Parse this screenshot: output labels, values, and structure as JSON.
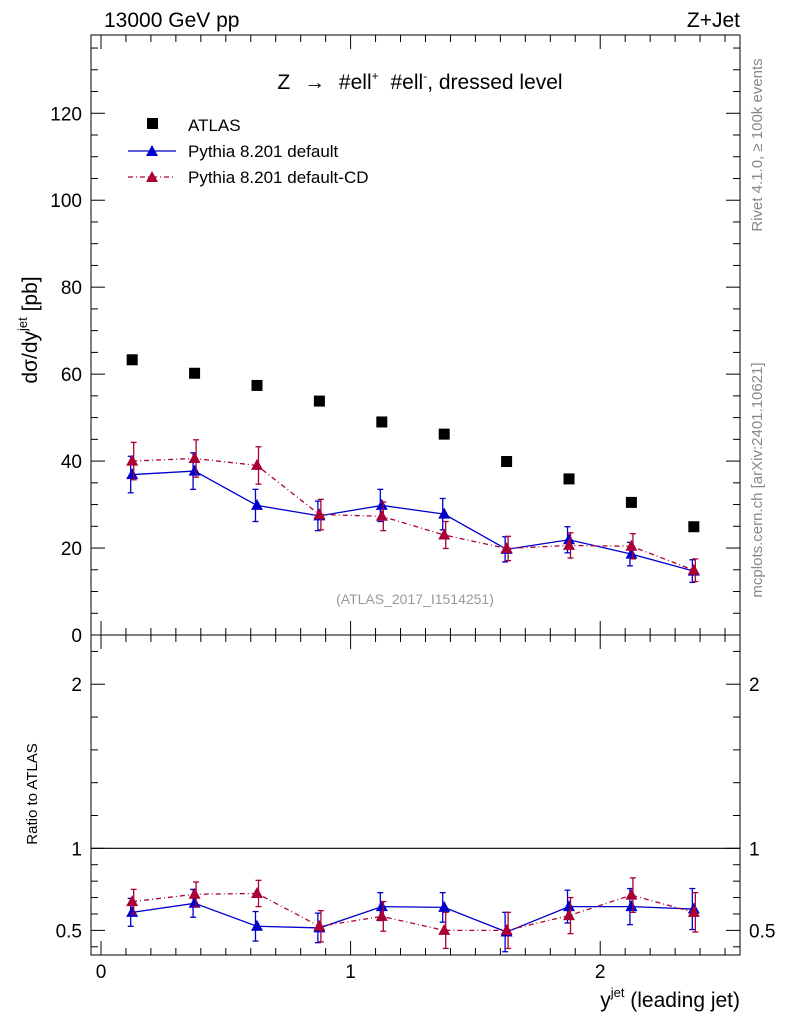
{
  "header": {
    "left": "13000 GeV pp",
    "right": "Z+Jet"
  },
  "side_labels": {
    "rivet": "Rivet 4.1.0, ≥ 100k events",
    "mcplots": "mcplots.cern.ch [arXiv:2401.10621]"
  },
  "chart_data": {
    "type": "scatter",
    "title": "Z → #ell⁺ #ell⁻, dressed level",
    "title_parts": {
      "z": "Z",
      "arrow": "→",
      "ell1": "#ell",
      "sup1": "+",
      "ell2": "#ell",
      "sup2": "-",
      "rest": ", dressed level"
    },
    "watermark": "(ATLAS_2017_I1514251)",
    "ylabel_parts": {
      "base": "dσ/dy",
      "sup": "jet",
      "unit": " [pb]"
    },
    "xlabel_parts": {
      "base": "y",
      "sup": "jet",
      "rest": " (leading jet)"
    },
    "ratio_ylabel": "Ratio to ATLAS",
    "xlim": [
      -0.04,
      2.56
    ],
    "ylim": [
      0,
      138
    ],
    "ratio_ylim": [
      0.35,
      2.3
    ],
    "x_ticks": [
      0,
      1,
      2
    ],
    "x_tick_labels": [
      "0",
      "1",
      "2"
    ],
    "y_ticks": [
      0,
      20,
      40,
      60,
      80,
      100,
      120
    ],
    "y_tick_labels": [
      "0",
      "20",
      "40",
      "60",
      "80",
      "100",
      "120"
    ],
    "ratio_ticks": [
      0.5,
      1,
      2
    ],
    "ratio_tick_labels": [
      "0.5",
      "1",
      "2"
    ],
    "x": [
      0.125,
      0.375,
      0.625,
      0.875,
      1.125,
      1.375,
      1.625,
      1.875,
      2.125,
      2.375
    ],
    "legend": [
      "ATLAS",
      "Pythia 8.201 default",
      "Pythia 8.201 default-CD"
    ],
    "series": [
      {
        "name": "ATLAS",
        "color": "#000000",
        "values": [
          63.3,
          60.2,
          57.4,
          53.8,
          49.0,
          46.2,
          39.9,
          35.9,
          30.5,
          24.9
        ]
      },
      {
        "name": "Pythia 8.201 default",
        "color": "#0000cc",
        "values": [
          36.9,
          37.7,
          29.8,
          27.4,
          29.8,
          27.8,
          19.7,
          21.9,
          18.6,
          14.7
        ],
        "errors": [
          4.2,
          4.2,
          3.7,
          3.4,
          3.7,
          3.6,
          2.9,
          3.0,
          2.7,
          2.6
        ],
        "ratio": [
          0.61,
          0.665,
          0.525,
          0.515,
          0.645,
          0.64,
          0.49,
          0.645,
          0.645,
          0.63
        ],
        "ratio_errors": [
          0.085,
          0.085,
          0.09,
          0.09,
          0.085,
          0.09,
          0.12,
          0.1,
          0.11,
          0.125
        ]
      },
      {
        "name": "Pythia 8.201 default-CD",
        "color": "#aa0033",
        "values": [
          40.0,
          40.6,
          39.0,
          27.7,
          27.3,
          23.0,
          19.9,
          20.6,
          20.4,
          14.9
        ],
        "errors": [
          4.3,
          4.3,
          4.3,
          3.5,
          3.3,
          3.1,
          2.8,
          2.9,
          2.9,
          2.6
        ],
        "ratio": [
          0.675,
          0.72,
          0.725,
          0.525,
          0.585,
          0.5,
          0.5,
          0.59,
          0.715,
          0.61
        ],
        "ratio_errors": [
          0.075,
          0.075,
          0.08,
          0.095,
          0.09,
          0.11,
          0.11,
          0.11,
          0.105,
          0.12
        ]
      }
    ]
  }
}
